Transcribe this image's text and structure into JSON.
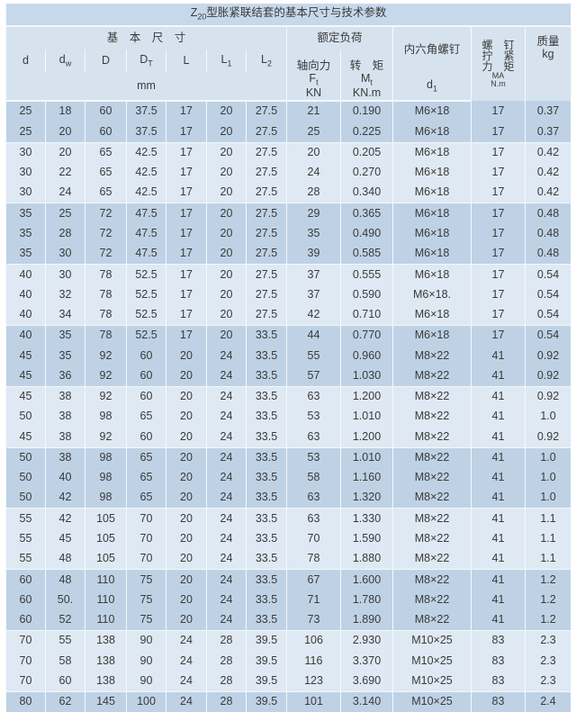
{
  "title": {
    "prefix": "Z",
    "sub": "20",
    "rest": "型胀紧联结套的基本尺寸与技术参数"
  },
  "header": {
    "basic_dims": "基　本　尺　寸",
    "rated_load": "额定负荷",
    "hex_screw": "内六角螺钉",
    "torque_label_line1": "螺　钉",
    "torque_label_line2": "拧　紧",
    "torque_label_line3": "力　矩",
    "torque_symbol": "MA",
    "torque_unit": "N.m",
    "mass": "质量",
    "mass_unit": "kg",
    "cols": {
      "d": "d",
      "dw": {
        "main": "d",
        "sub": "w"
      },
      "D": "D",
      "DT": {
        "main": "D",
        "sub": "T"
      },
      "L": "L",
      "L1": {
        "main": "L",
        "sub": "1"
      },
      "L2": {
        "main": "L",
        "sub": "2"
      }
    },
    "axial_force": "轴向力",
    "axial_symbol": {
      "main": "F",
      "sub": "t"
    },
    "axial_unit": "KN",
    "torque": "转　矩",
    "torque_sym": {
      "main": "M",
      "sub": "t"
    },
    "torque_unit_knm": "KN.m",
    "mm": "mm",
    "d1": {
      "main": "d",
      "sub": "1"
    }
  },
  "colors": {
    "light_row": "#dfe9f3",
    "dark_row": "#bfd2e5",
    "header": "#d6e3ef",
    "title": "#c7d8ea"
  },
  "rows": [
    {
      "shade": "dark",
      "cells": [
        "25",
        "18",
        "60",
        "37.5",
        "17",
        "20",
        "27.5",
        "21",
        "0.190",
        "M6×18",
        "17",
        "0.37"
      ]
    },
    {
      "shade": "dark",
      "cells": [
        "25",
        "20",
        "60",
        "37.5",
        "17",
        "20",
        "27.5",
        "25",
        "0.225",
        "M6×18",
        "17",
        "0.37"
      ]
    },
    {
      "shade": "light",
      "cells": [
        "30",
        "20",
        "65",
        "42.5",
        "17",
        "20",
        "27.5",
        "20",
        "0.205",
        "M6×18",
        "17",
        "0.42"
      ]
    },
    {
      "shade": "light",
      "cells": [
        "30",
        "22",
        "65",
        "42.5",
        "17",
        "20",
        "27.5",
        "24",
        "0.270",
        "M6×18",
        "17",
        "0.42"
      ]
    },
    {
      "shade": "light",
      "cells": [
        "30",
        "24",
        "65",
        "42.5",
        "17",
        "20",
        "27.5",
        "28",
        "0.340",
        "M6×18",
        "17",
        "0.42"
      ]
    },
    {
      "shade": "dark",
      "cells": [
        "35",
        "25",
        "72",
        "47.5",
        "17",
        "20",
        "27.5",
        "29",
        "0.365",
        "M6×18",
        "17",
        "0.48"
      ]
    },
    {
      "shade": "dark",
      "cells": [
        "35",
        "28",
        "72",
        "47.5",
        "17",
        "20",
        "27.5",
        "35",
        "0.490",
        "M6×18",
        "17",
        "0.48"
      ]
    },
    {
      "shade": "dark",
      "cells": [
        "35",
        "30",
        "72",
        "47.5",
        "17",
        "20",
        "27.5",
        "39",
        "0.585",
        "M6×18",
        "17",
        "0.48"
      ]
    },
    {
      "shade": "light",
      "cells": [
        "40",
        "30",
        "78",
        "52.5",
        "17",
        "20",
        "27.5",
        "37",
        "0.555",
        "M6×18",
        "17",
        "0.54"
      ]
    },
    {
      "shade": "light",
      "cells": [
        "40",
        "32",
        "78",
        "52.5",
        "17",
        "20",
        "27.5",
        "37",
        "0.590",
        "M6×18.",
        "17",
        "0.54"
      ]
    },
    {
      "shade": "light",
      "cells": [
        "40",
        "34",
        "78",
        "52.5",
        "17",
        "20",
        "27.5",
        "42",
        "0.710",
        "M6×18",
        "17",
        "0.54"
      ]
    },
    {
      "shade": "dark",
      "cells": [
        "40",
        "35",
        "78",
        "52.5",
        "17",
        "20",
        "33.5",
        "44",
        "0.770",
        "M6×18",
        "17",
        "0.54"
      ]
    },
    {
      "shade": "dark",
      "cells": [
        "45",
        "35",
        "92",
        "60",
        "20",
        "24",
        "33.5",
        "55",
        "0.960",
        "M8×22",
        "41",
        "0.92"
      ]
    },
    {
      "shade": "dark",
      "cells": [
        "45",
        "36",
        "92",
        "60",
        "20",
        "24",
        "33.5",
        "57",
        "1.030",
        "M8×22",
        "41",
        "0.92"
      ]
    },
    {
      "shade": "light",
      "cells": [
        "45",
        "38",
        "92",
        "60",
        "20",
        "24",
        "33.5",
        "63",
        "1.200",
        "M8×22",
        "41",
        "0.92"
      ]
    },
    {
      "shade": "light",
      "cells": [
        "50",
        "38",
        "98",
        "65",
        "20",
        "24",
        "33.5",
        "53",
        "1.010",
        "M8×22",
        "41",
        "1.0"
      ]
    },
    {
      "shade": "light",
      "cells": [
        "45",
        "38",
        "92",
        "60",
        "20",
        "24",
        "33.5",
        "63",
        "1.200",
        "M8×22",
        "41",
        "0.92"
      ]
    },
    {
      "shade": "dark",
      "cells": [
        "50",
        "38",
        "98",
        "65",
        "20",
        "24",
        "33.5",
        "53",
        "1.010",
        "M8×22",
        "41",
        "1.0"
      ]
    },
    {
      "shade": "dark",
      "cells": [
        "50",
        "40",
        "98",
        "65",
        "20",
        "24",
        "33.5",
        "58",
        "1.160",
        "M8×22",
        "41",
        "1.0"
      ]
    },
    {
      "shade": "dark",
      "cells": [
        "50",
        "42",
        "98",
        "65",
        "20",
        "24",
        "33.5",
        "63",
        "1.320",
        "M8×22",
        "41",
        "1.0"
      ]
    },
    {
      "shade": "light",
      "cells": [
        "55",
        "42",
        "105",
        "70",
        "20",
        "24",
        "33.5",
        "63",
        "1.330",
        "M8×22",
        "41",
        "1.1"
      ]
    },
    {
      "shade": "light",
      "cells": [
        "55",
        "45",
        "105",
        "70",
        "20",
        "24",
        "33.5",
        "70",
        "1.590",
        "M8×22",
        "41",
        "1.1"
      ]
    },
    {
      "shade": "light",
      "cells": [
        "55",
        "48",
        "105",
        "70",
        "20",
        "24",
        "33.5",
        "78",
        "1.880",
        "M8×22",
        "41",
        "1.1"
      ]
    },
    {
      "shade": "dark",
      "cells": [
        "60",
        "48",
        "110",
        "75",
        "20",
        "24",
        "33.5",
        "67",
        "1.600",
        "M8×22",
        "41",
        "1.2"
      ]
    },
    {
      "shade": "dark",
      "cells": [
        "60",
        "50.",
        "110",
        "75",
        "20",
        "24",
        "33.5",
        "71",
        "1.780",
        "M8×22",
        "41",
        "1.2"
      ]
    },
    {
      "shade": "dark",
      "cells": [
        "60",
        "52",
        "110",
        "75",
        "20",
        "24",
        "33.5",
        "73",
        "1.890",
        "M8×22",
        "41",
        "1.2"
      ]
    },
    {
      "shade": "light",
      "cells": [
        "70",
        "55",
        "138",
        "90",
        "24",
        "28",
        "39.5",
        "106",
        "2.930",
        "M10×25",
        "83",
        "2.3"
      ]
    },
    {
      "shade": "light",
      "cells": [
        "70",
        "58",
        "138",
        "90",
        "24",
        "28",
        "39.5",
        "116",
        "3.370",
        "M10×25",
        "83",
        "2.3"
      ]
    },
    {
      "shade": "light",
      "cells": [
        "70",
        "60",
        "138",
        "90",
        "24",
        "28",
        "39.5",
        "123",
        "3.690",
        "M10×25",
        "83",
        "2.3"
      ]
    },
    {
      "shade": "dark",
      "cells": [
        "80",
        "62",
        "145",
        "100",
        "24",
        "28",
        "39.5",
        "101",
        "3.140",
        "M10×25",
        "83",
        "2.4"
      ]
    }
  ]
}
